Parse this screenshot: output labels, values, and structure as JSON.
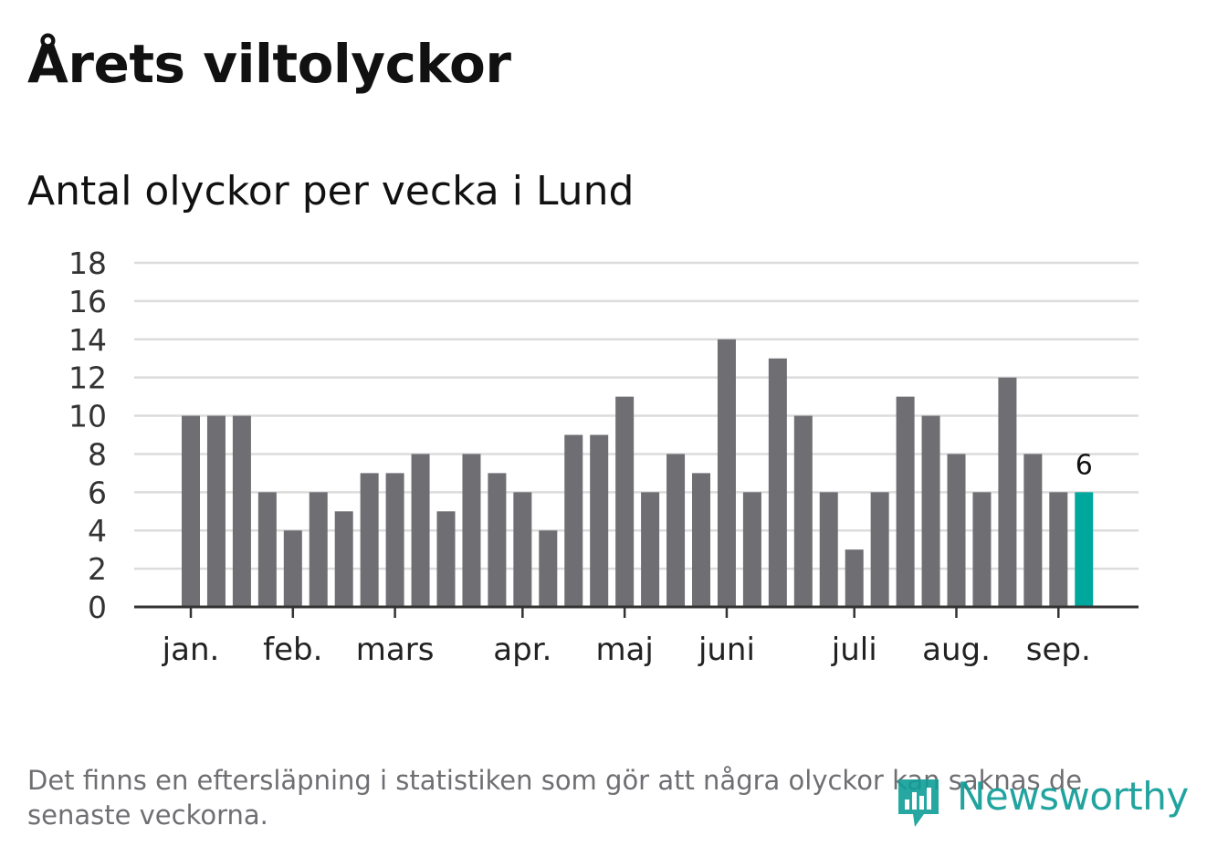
{
  "header": {
    "title": "Årets viltolyckor",
    "subtitle": "Antal olyckor per vecka i Lund"
  },
  "colors": {
    "bar": "#6e6e73",
    "highlight": "#00a79d",
    "grid": "#dcdcdc",
    "axis": "#333333",
    "logo": "#0f9d97"
  },
  "chart_data": {
    "type": "bar",
    "values": [
      10,
      10,
      10,
      6,
      4,
      6,
      5,
      7,
      7,
      8,
      5,
      8,
      7,
      6,
      4,
      9,
      9,
      11,
      6,
      8,
      7,
      14,
      6,
      13,
      10,
      6,
      3,
      6,
      11,
      10,
      8,
      6,
      12,
      8,
      6,
      6
    ],
    "highlight_index": 35,
    "data_label": "6",
    "ylim": [
      0,
      18
    ],
    "yticks": [
      "0",
      "2",
      "4",
      "6",
      "8",
      "10",
      "12",
      "14",
      "16",
      "18"
    ],
    "month_labels": [
      {
        "label": "jan.",
        "bar": 0
      },
      {
        "label": "feb.",
        "bar": 4
      },
      {
        "label": "mars",
        "bar": 8
      },
      {
        "label": "apr.",
        "bar": 13
      },
      {
        "label": "maj",
        "bar": 17
      },
      {
        "label": "juni",
        "bar": 21
      },
      {
        "label": "juli",
        "bar": 26
      },
      {
        "label": "aug.",
        "bar": 30
      },
      {
        "label": "sep.",
        "bar": 34
      }
    ],
    "grid": true,
    "legend": "none"
  },
  "footer": {
    "note": "Det finns en eftersläpning i statistiken som gör att några olyckor kan saknas de senaste veckorna.",
    "logo_text": "Newsworthy",
    "logo_icon": "bar-chart-pin-icon"
  }
}
